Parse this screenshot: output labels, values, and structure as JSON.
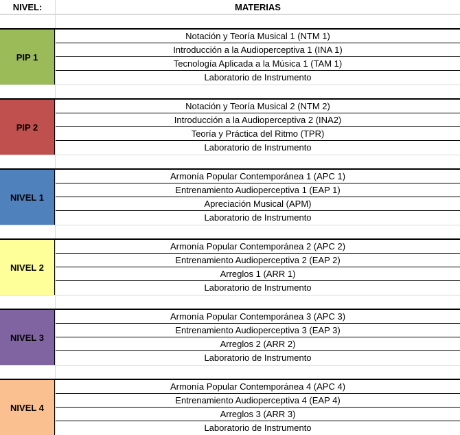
{
  "header": {
    "nivel": "NIVEL:",
    "materias": "MATERIAS"
  },
  "groups": [
    {
      "level": "PIP 1",
      "color": "#9bbb59",
      "subjects": [
        "Notación y Teoría Musical 1 (NTM 1)",
        "Introducción a la Audioperceptiva 1 (INA 1)",
        "Tecnología Aplicada a la Música 1 (TAM 1)",
        "Laboratorio de Instrumento"
      ]
    },
    {
      "level": "PIP 2",
      "color": "#c0504d",
      "subjects": [
        "Notación y Teoría Musical 2 (NTM 2)",
        "Introducción a la Audioperceptiva 2 (INA2)",
        "Teoría y Práctica del Ritmo (TPR)",
        "Laboratorio de Instrumento"
      ]
    },
    {
      "level": "NIVEL 1",
      "color": "#4f81bd",
      "subjects": [
        "Armonía Popular Contemporánea 1 (APC 1)",
        "Entrenamiento Audioperceptiva 1 (EAP 1)",
        "Apreciación Musical (APM)",
        "Laboratorio de Instrumento"
      ]
    },
    {
      "level": "NIVEL 2",
      "color": "#ffff99",
      "subjects": [
        "Armonía Popular Contemporánea 2 (APC 2)",
        "Entrenamiento Audioperceptiva 2 (EAP 2)",
        "Arreglos 1 (ARR 1)",
        "Laboratorio de Instrumento"
      ]
    },
    {
      "level": "NIVEL 3",
      "color": "#8064a2",
      "subjects": [
        "Armonía Popular Contemporánea 3 (APC 3)",
        "Entrenamiento Audioperceptiva 3 (EAP 3)",
        "Arreglos 2 (ARR 2)",
        "Laboratorio de Instrumento"
      ]
    },
    {
      "level": "NIVEL 4",
      "color": "#fac090",
      "subjects": [
        "Armonía Popular Contemporánea 4 (APC 4)",
        "Entrenamiento Audioperceptiva 4 (EAP 4)",
        "Arreglos 3 (ARR 3)",
        "Laboratorio de Instrumento"
      ]
    }
  ]
}
